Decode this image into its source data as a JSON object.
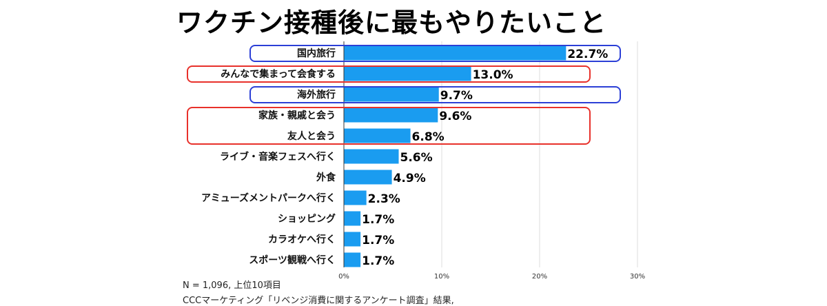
{
  "chart_data": {
    "type": "bar",
    "orientation": "horizontal",
    "title": "ワクチン接種後に最もやりたいこと",
    "categories": [
      "国内旅行",
      "みんなで集まって会食する",
      "海外旅行",
      "家族・親戚と会う",
      "友人と会う",
      "ライブ・音楽フェスへ行く",
      "外食",
      "アミューズメントパークへ行く",
      "ショッピング",
      "カラオケへ行く",
      "スポーツ観戦へ行く"
    ],
    "values": [
      22.7,
      13.0,
      9.7,
      9.6,
      6.8,
      5.6,
      4.9,
      2.3,
      1.7,
      1.7,
      1.7
    ],
    "value_labels": [
      "22.7%",
      "13.0%",
      "9.7%",
      "9.6%",
      "6.8%",
      "5.6%",
      "4.9%",
      "2.3%",
      "1.7%",
      "1.7%",
      "1.7%"
    ],
    "xlim": [
      0,
      30
    ],
    "x_ticks": [
      0,
      10,
      20,
      30
    ],
    "x_tick_labels": [
      "0%",
      "10%",
      "20%",
      "30%"
    ],
    "grid": true,
    "bar_color": "#1a9cf0",
    "highlights": [
      {
        "categories": [
          "国内旅行"
        ],
        "color": "#2b3fd6"
      },
      {
        "categories": [
          "みんなで集まって会食する"
        ],
        "color": "#e8302a"
      },
      {
        "categories": [
          "海外旅行"
        ],
        "color": "#2b3fd6"
      },
      {
        "categories": [
          "家族・親戚と会う",
          "友人と会う"
        ],
        "color": "#e8302a"
      }
    ]
  },
  "notes": {
    "sample": "N = 1,096, 上位10項目",
    "source": "CCCマーケティング「リベンジ消費に関するアンケート調査」結果,"
  }
}
